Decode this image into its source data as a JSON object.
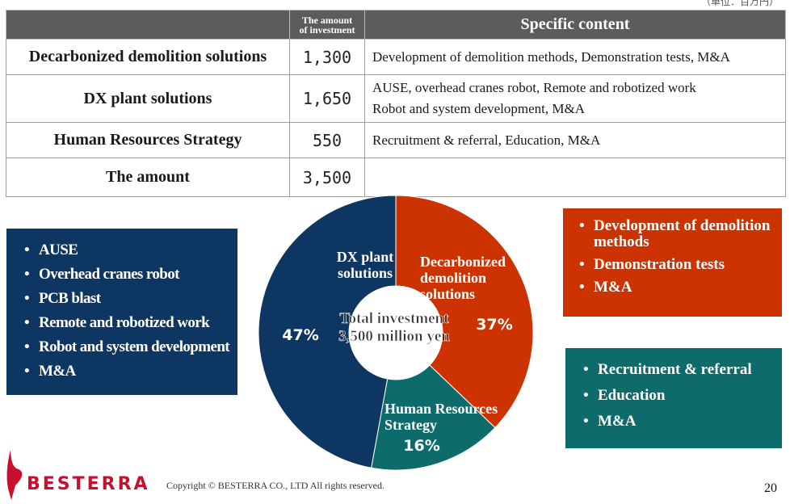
{
  "header_unit": "（単位：百万円）",
  "table": {
    "col_category": "",
    "col_amount_line1": "The amount",
    "col_amount_line2": "of investment",
    "col_content": "Specific content",
    "rows": [
      {
        "category": "Decarbonized demolition solutions",
        "amount": "1,300",
        "content_line1": "Development of demolition methods, Demonstration tests, M&A",
        "content_line2": ""
      },
      {
        "category": "DX plant solutions",
        "amount": "1,650",
        "content_line1": "AUSE, overhead cranes robot, Remote and robotized work",
        "content_line2": "Robot and system development, M&A"
      },
      {
        "category": "Human Resources Strategy",
        "amount": "550",
        "content_line1": "Recruitment & referral, Education, M&A",
        "content_line2": ""
      },
      {
        "category": "The amount",
        "amount": "3,500",
        "content_line1": "",
        "content_line2": ""
      }
    ]
  },
  "boxes": {
    "dx_items": [
      "AUSE",
      "Overhead cranes robot",
      "PCB blast",
      "Remote and robotized work",
      "Robot and system development",
      "M&A"
    ],
    "decarb_items": [
      "Development of demolition methods",
      "Demonstration tests",
      "M&A"
    ],
    "hr_items": [
      "Recruitment & referral",
      "Education",
      "M&A"
    ]
  },
  "chart_data": {
    "type": "pie",
    "donut": true,
    "center_label_line1": "Total investment",
    "center_label_line2": "3,500 million yen",
    "slices": [
      {
        "label_lines": [
          "Decarbonized",
          "demolition",
          "solutions"
        ],
        "value": 1300,
        "percent_label": "37%",
        "color": "#cc3300"
      },
      {
        "label_lines": [
          "Human Resources",
          "Strategy"
        ],
        "value": 550,
        "percent_label": "16%",
        "color": "#0e6b6b"
      },
      {
        "label_lines": [
          "DX plant",
          "solutions"
        ],
        "value": 1650,
        "percent_label": "47%",
        "color": "#0d3762"
      }
    ]
  },
  "footer": {
    "logo": "BESTERRA",
    "copyright": "Copyright © BESTERRA CO., LTD All rights reserved.",
    "page_number": "20"
  },
  "colors": {
    "dx": "#0d3762",
    "decarb": "#cc3300",
    "hr": "#0e6b6b",
    "header": "#5c5c5c"
  }
}
